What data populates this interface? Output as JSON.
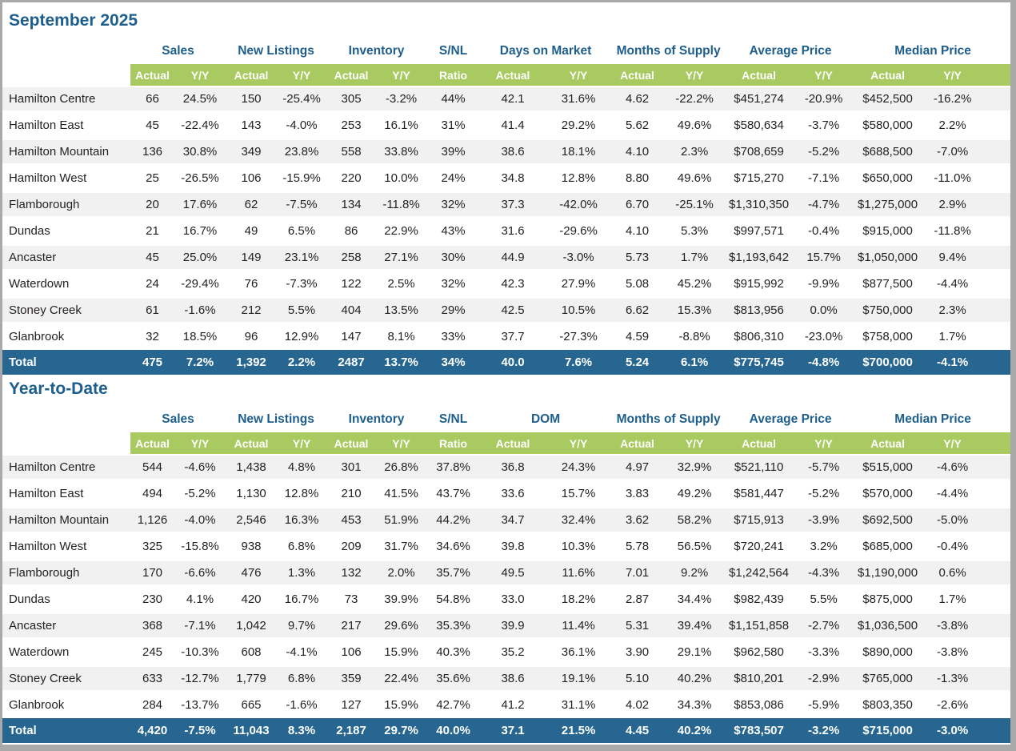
{
  "palette": {
    "header_green": "#a8ca60",
    "total_row_blue": "#276690",
    "heading_blue": "#1d5e8c",
    "stripe_gray": "#f1f1f1",
    "frame_gray": "#a9a9a9"
  },
  "sub_headers": [
    "Actual",
    "Y/Y",
    "Actual",
    "Y/Y",
    "Actual",
    "Y/Y",
    "Ratio",
    "Actual",
    "Y/Y",
    "Actual",
    "Y/Y",
    "Actual",
    "Y/Y",
    "Actual",
    "Y/Y"
  ],
  "tables": [
    {
      "title": "September 2025",
      "groups": [
        {
          "label": "Sales",
          "span": 2
        },
        {
          "label": "New Listings",
          "span": 2
        },
        {
          "label": "Inventory",
          "span": 2
        },
        {
          "label": "S/NL",
          "span": 1
        },
        {
          "label": "Days on Market",
          "span": 2
        },
        {
          "label": "Months of Supply",
          "span": 2
        },
        {
          "label": "Average Price",
          "span": 2
        },
        {
          "label": "Median Price",
          "span": 2
        }
      ],
      "rows": [
        {
          "name": "Hamilton Centre",
          "cells": [
            "66",
            "24.5%",
            "150",
            "-25.4%",
            "305",
            "-3.2%",
            "44%",
            "42.1",
            "31.6%",
            "4.62",
            "-22.2%",
            "$451,274",
            "-20.9%",
            "$452,500",
            "-16.2%"
          ]
        },
        {
          "name": "Hamilton East",
          "cells": [
            "45",
            "-22.4%",
            "143",
            "-4.0%",
            "253",
            "16.1%",
            "31%",
            "41.4",
            "29.2%",
            "5.62",
            "49.6%",
            "$580,634",
            "-3.7%",
            "$580,000",
            "2.2%"
          ]
        },
        {
          "name": "Hamilton Mountain",
          "cells": [
            "136",
            "30.8%",
            "349",
            "23.8%",
            "558",
            "33.8%",
            "39%",
            "38.6",
            "18.1%",
            "4.10",
            "2.3%",
            "$708,659",
            "-5.2%",
            "$688,500",
            "-7.0%"
          ]
        },
        {
          "name": "Hamilton West",
          "cells": [
            "25",
            "-26.5%",
            "106",
            "-15.9%",
            "220",
            "10.0%",
            "24%",
            "34.8",
            "12.8%",
            "8.80",
            "49.6%",
            "$715,270",
            "-7.1%",
            "$650,000",
            "-11.0%"
          ]
        },
        {
          "name": "Flamborough",
          "cells": [
            "20",
            "17.6%",
            "62",
            "-7.5%",
            "134",
            "-11.8%",
            "32%",
            "37.3",
            "-42.0%",
            "6.70",
            "-25.1%",
            "$1,310,350",
            "-4.7%",
            "$1,275,000",
            "2.9%"
          ]
        },
        {
          "name": "Dundas",
          "cells": [
            "21",
            "16.7%",
            "49",
            "6.5%",
            "86",
            "22.9%",
            "43%",
            "31.6",
            "-29.6%",
            "4.10",
            "5.3%",
            "$997,571",
            "-0.4%",
            "$915,000",
            "-11.8%"
          ]
        },
        {
          "name": "Ancaster",
          "cells": [
            "45",
            "25.0%",
            "149",
            "23.1%",
            "258",
            "27.1%",
            "30%",
            "44.9",
            "-3.0%",
            "5.73",
            "1.7%",
            "$1,193,642",
            "15.7%",
            "$1,050,000",
            "9.4%"
          ]
        },
        {
          "name": "Waterdown",
          "cells": [
            "24",
            "-29.4%",
            "76",
            "-7.3%",
            "122",
            "2.5%",
            "32%",
            "42.3",
            "27.9%",
            "5.08",
            "45.2%",
            "$915,992",
            "-9.9%",
            "$877,500",
            "-4.4%"
          ]
        },
        {
          "name": "Stoney Creek",
          "cells": [
            "61",
            "-1.6%",
            "212",
            "5.5%",
            "404",
            "13.5%",
            "29%",
            "42.5",
            "10.5%",
            "6.62",
            "15.3%",
            "$813,956",
            "0.0%",
            "$750,000",
            "2.3%"
          ]
        },
        {
          "name": "Glanbrook",
          "cells": [
            "32",
            "18.5%",
            "96",
            "12.9%",
            "147",
            "8.1%",
            "33%",
            "37.7",
            "-27.3%",
            "4.59",
            "-8.8%",
            "$806,310",
            "-23.0%",
            "$758,000",
            "1.7%"
          ]
        }
      ],
      "total": {
        "name": "Total",
        "cells": [
          "475",
          "7.2%",
          "1,392",
          "2.2%",
          "2487",
          "13.7%",
          "34%",
          "40.0",
          "7.6%",
          "5.24",
          "6.1%",
          "$775,745",
          "-4.8%",
          "$700,000",
          "-4.1%"
        ]
      }
    },
    {
      "title": "Year-to-Date",
      "groups": [
        {
          "label": "Sales",
          "span": 2
        },
        {
          "label": "New Listings",
          "span": 2
        },
        {
          "label": "Inventory",
          "span": 2
        },
        {
          "label": "S/NL",
          "span": 1
        },
        {
          "label": "DOM",
          "span": 2
        },
        {
          "label": "Months of Supply",
          "span": 2
        },
        {
          "label": "Average Price",
          "span": 2
        },
        {
          "label": "Median Price",
          "span": 2
        }
      ],
      "rows": [
        {
          "name": "Hamilton Centre",
          "cells": [
            "544",
            "-4.6%",
            "1,438",
            "4.8%",
            "301",
            "26.8%",
            "37.8%",
            "36.8",
            "24.3%",
            "4.97",
            "32.9%",
            "$521,110",
            "-5.7%",
            "$515,000",
            "-4.6%"
          ]
        },
        {
          "name": "Hamilton East",
          "cells": [
            "494",
            "-5.2%",
            "1,130",
            "12.8%",
            "210",
            "41.5%",
            "43.7%",
            "33.6",
            "15.7%",
            "3.83",
            "49.2%",
            "$581,447",
            "-5.2%",
            "$570,000",
            "-4.4%"
          ]
        },
        {
          "name": "Hamilton Mountain",
          "cells": [
            "1,126",
            "-4.0%",
            "2,546",
            "16.3%",
            "453",
            "51.9%",
            "44.2%",
            "34.7",
            "32.4%",
            "3.62",
            "58.2%",
            "$715,913",
            "-3.9%",
            "$692,500",
            "-5.0%"
          ]
        },
        {
          "name": "Hamilton West",
          "cells": [
            "325",
            "-15.8%",
            "938",
            "6.8%",
            "209",
            "31.7%",
            "34.6%",
            "39.8",
            "10.3%",
            "5.78",
            "56.5%",
            "$720,241",
            "3.2%",
            "$685,000",
            "-0.4%"
          ]
        },
        {
          "name": "Flamborough",
          "cells": [
            "170",
            "-6.6%",
            "476",
            "1.3%",
            "132",
            "2.0%",
            "35.7%",
            "49.5",
            "11.6%",
            "7.01",
            "9.2%",
            "$1,242,564",
            "-4.3%",
            "$1,190,000",
            "0.6%"
          ]
        },
        {
          "name": "Dundas",
          "cells": [
            "230",
            "4.1%",
            "420",
            "16.7%",
            "73",
            "39.9%",
            "54.8%",
            "33.0",
            "18.2%",
            "2.87",
            "34.4%",
            "$982,439",
            "5.5%",
            "$875,000",
            "1.7%"
          ]
        },
        {
          "name": "Ancaster",
          "cells": [
            "368",
            "-7.1%",
            "1,042",
            "9.7%",
            "217",
            "29.6%",
            "35.3%",
            "39.9",
            "11.4%",
            "5.31",
            "39.4%",
            "$1,151,858",
            "-2.7%",
            "$1,036,500",
            "-3.8%"
          ]
        },
        {
          "name": "Waterdown",
          "cells": [
            "245",
            "-10.3%",
            "608",
            "-4.1%",
            "106",
            "15.9%",
            "40.3%",
            "35.2",
            "36.1%",
            "3.90",
            "29.1%",
            "$962,580",
            "-3.3%",
            "$890,000",
            "-3.8%"
          ]
        },
        {
          "name": "Stoney Creek",
          "cells": [
            "633",
            "-12.7%",
            "1,779",
            "6.8%",
            "359",
            "22.4%",
            "35.6%",
            "38.6",
            "19.1%",
            "5.10",
            "40.2%",
            "$810,201",
            "-2.9%",
            "$765,000",
            "-1.3%"
          ]
        },
        {
          "name": "Glanbrook",
          "cells": [
            "284",
            "-13.7%",
            "665",
            "-1.6%",
            "127",
            "15.9%",
            "42.7%",
            "41.2",
            "31.1%",
            "4.02",
            "34.3%",
            "$853,086",
            "-5.9%",
            "$803,350",
            "-2.6%"
          ]
        }
      ],
      "total": {
        "name": "Total",
        "cells": [
          "4,420",
          "-7.5%",
          "11,043",
          "8.3%",
          "2,187",
          "29.7%",
          "40.0%",
          "37.1",
          "21.5%",
          "4.45",
          "40.2%",
          "$783,507",
          "-3.2%",
          "$715,000",
          "-3.0%"
        ]
      }
    }
  ]
}
